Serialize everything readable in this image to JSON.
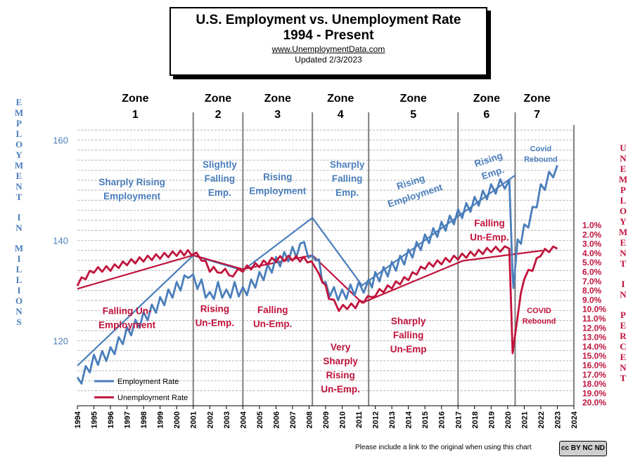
{
  "title": {
    "line1": "U.S. Employment vs. Unemployment Rate",
    "line2": "1994 - Present",
    "url": "www.UnemploymentData.com",
    "updated": "Updated  2/3/2023"
  },
  "left_axis_label": "EMPLOYMENT IN MILLIONS",
  "right_axis_label": "UNEMPLOYMENT IN PERCENT",
  "footer": "Please include a link to the original when using this chart",
  "cc_badge": "cc BY NC ND",
  "colors": {
    "employment": "#4a7ebb",
    "unemployment": "#c0143c",
    "zone_line": "#7f7f7f",
    "grid": "#999999"
  },
  "zones": [
    {
      "name": "Zone",
      "num": "1",
      "start": 1994,
      "end": 2001
    },
    {
      "name": "Zone",
      "num": "2",
      "start": 2001,
      "end": 2004
    },
    {
      "name": "Zone",
      "num": "3",
      "start": 2004,
      "end": 2008.2
    },
    {
      "name": "Zone",
      "num": "4",
      "start": 2008.2,
      "end": 2011.6
    },
    {
      "name": "Zone",
      "num": "5",
      "start": 2011.6,
      "end": 2017
    },
    {
      "name": "Zone",
      "num": "6",
      "start": 2017,
      "end": 2020.45
    },
    {
      "name": "Zone",
      "num": "7",
      "start": 2020.45,
      "end": 2023.1
    }
  ],
  "annotations": [
    {
      "lines": [
        "Sharply Rising",
        "Employment"
      ],
      "color": "employment",
      "x": 1997.3,
      "y": 151
    },
    {
      "lines": [
        "Slightly",
        "Falling",
        "Emp."
      ],
      "color": "employment",
      "x": 2002.6,
      "y": 154.5
    },
    {
      "lines": [
        "Rising",
        "Employment"
      ],
      "color": "employment",
      "x": 2006.1,
      "y": 152
    },
    {
      "lines": [
        "Sharply",
        "Falling",
        "Emp."
      ],
      "color": "employment",
      "x": 2010.3,
      "y": 154.5
    },
    {
      "lines": [
        "Rising",
        "Employment"
      ],
      "color": "employment",
      "x": 2014.2,
      "y": 151,
      "rotate": -18
    },
    {
      "lines": [
        "Rising",
        "Emp."
      ],
      "color": "employment",
      "x": 2018.9,
      "y": 155.5,
      "rotate": -18
    },
    {
      "lines": [
        "Covid",
        "Rebound"
      ],
      "color": "employment",
      "x": 2022.0,
      "y": 157.8,
      "small": true
    },
    {
      "lines": [
        "Falling Un-",
        "Employment"
      ],
      "color": "unemployment",
      "x": 1997.0,
      "y": 10.5
    },
    {
      "lines": [
        "Rising",
        "Un-Emp."
      ],
      "color": "unemployment",
      "x": 2002.3,
      "y": 10.3
    },
    {
      "lines": [
        "Falling",
        "Un-Emp."
      ],
      "color": "unemployment",
      "x": 2005.8,
      "y": 10.4
    },
    {
      "lines": [
        "Very",
        "Sharply",
        "Rising",
        "Un-Emp."
      ],
      "color": "unemployment",
      "x": 2009.9,
      "y": 14.4
    },
    {
      "lines": [
        "Sharply",
        "Falling",
        "Un-Emp"
      ],
      "color": "unemployment",
      "x": 2014.0,
      "y": 11.6
    },
    {
      "lines": [
        "Falling",
        "Un-Emp."
      ],
      "color": "unemployment",
      "x": 2018.9,
      "y": 1.1
    },
    {
      "lines": [
        "COVID",
        "Rebound"
      ],
      "color": "unemployment",
      "x": 2021.9,
      "y": 10.4,
      "small": true
    }
  ],
  "chart_data": {
    "type": "line",
    "title": "U.S. Employment vs. Unemployment Rate 1994 - Present",
    "x_ticks": [
      1994,
      1995,
      1996,
      1997,
      1998,
      1999,
      2000,
      2001,
      2002,
      2003,
      2004,
      2005,
      2006,
      2007,
      2008,
      2009,
      2010,
      2011,
      2012,
      2013,
      2014,
      2015,
      2016,
      2017,
      2018,
      2019,
      2020,
      2021,
      2022,
      2023,
      2024
    ],
    "xlim": [
      1994,
      2024
    ],
    "y_left": {
      "label": "EMPLOYMENT IN MILLIONS",
      "ticks": [
        120,
        140,
        160
      ],
      "lim": [
        108,
        164
      ]
    },
    "y_right": {
      "label": "UNEMPLOYMENT IN PERCENT",
      "ticks": [
        "1.0%",
        "2.0%",
        "3.0%",
        "4.0%",
        "5.0%",
        "6.0%",
        "7.0%",
        "8.0%",
        "9.0%",
        "10.0%",
        "11.0%",
        "12.0%",
        "13.0%",
        "14.0%",
        "15.0%",
        "16.0%",
        "17.0%",
        "18.0%",
        "19.0%",
        "20.0%"
      ],
      "lim": [
        1,
        20
      ],
      "inverted": true
    },
    "legend": {
      "position": "bottom-left",
      "entries": [
        "Employment Rate",
        "Unemployment Rate"
      ]
    },
    "series": [
      {
        "name": "Employment Rate",
        "axis": "left",
        "points": [
          [
            1994,
            111.5
          ],
          [
            1995,
            116
          ],
          [
            1996,
            117.5
          ],
          [
            1997,
            121.5
          ],
          [
            1998,
            124.5
          ],
          [
            1999,
            127.5
          ],
          [
            2000,
            130.5
          ],
          [
            2000.7,
            132.5
          ],
          [
            2001,
            132
          ],
          [
            2001.5,
            131
          ],
          [
            2002,
            128.5
          ],
          [
            2002.5,
            130.5
          ],
          [
            2003,
            129
          ],
          [
            2003.5,
            130.5
          ],
          [
            2004,
            129.5
          ],
          [
            2005,
            132.5
          ],
          [
            2006,
            135.5
          ],
          [
            2007,
            137.5
          ],
          [
            2007.7,
            138.5
          ],
          [
            2008.2,
            137
          ],
          [
            2008.6,
            135
          ],
          [
            2009,
            130.5
          ],
          [
            2009.5,
            129.5
          ],
          [
            2010,
            129
          ],
          [
            2010.5,
            130
          ],
          [
            2011,
            130.5
          ],
          [
            2011.6,
            131
          ],
          [
            2012,
            132.5
          ],
          [
            2013,
            134.5
          ],
          [
            2014,
            137
          ],
          [
            2015,
            140
          ],
          [
            2016,
            142.5
          ],
          [
            2017,
            145
          ],
          [
            2018,
            147.5
          ],
          [
            2019,
            150
          ],
          [
            2020.1,
            152
          ],
          [
            2020.3,
            133
          ],
          [
            2020.35,
            130.5
          ],
          [
            2020.6,
            139
          ],
          [
            2021,
            142
          ],
          [
            2021.5,
            145.5
          ],
          [
            2022,
            150
          ],
          [
            2022.5,
            152.5
          ],
          [
            2023,
            155
          ]
        ],
        "trend": [
          [
            1994,
            115
          ],
          [
            2001,
            137
          ],
          [
            2004,
            134
          ],
          [
            2008.2,
            144.5
          ],
          [
            2011.2,
            131
          ],
          [
            2020.45,
            153
          ]
        ]
      },
      {
        "name": "Unemployment Rate",
        "axis": "right",
        "points": [
          [
            1994,
            7.2
          ],
          [
            1995,
            5.8
          ],
          [
            1996,
            5.6
          ],
          [
            1997,
            5.0
          ],
          [
            1998,
            4.6
          ],
          [
            1999,
            4.3
          ],
          [
            2000,
            4.0
          ],
          [
            2000.9,
            3.9
          ],
          [
            2001.5,
            4.5
          ],
          [
            2002,
            5.7
          ],
          [
            2002.7,
            5.8
          ],
          [
            2003.4,
            6.2
          ],
          [
            2004,
            5.7
          ],
          [
            2005,
            5.2
          ],
          [
            2006,
            4.6
          ],
          [
            2007,
            4.5
          ],
          [
            2007.9,
            4.7
          ],
          [
            2008.4,
            5.6
          ],
          [
            2008.8,
            6.8
          ],
          [
            2009.2,
            8.6
          ],
          [
            2009.8,
            9.9
          ],
          [
            2010.3,
            9.7
          ],
          [
            2010.8,
            9.6
          ],
          [
            2011.3,
            9.0
          ],
          [
            2011.8,
            8.7
          ],
          [
            2012,
            8.3
          ],
          [
            2013,
            7.5
          ],
          [
            2014,
            6.6
          ],
          [
            2015,
            5.4
          ],
          [
            2016,
            4.9
          ],
          [
            2017,
            4.4
          ],
          [
            2018,
            4.0
          ],
          [
            2019,
            3.6
          ],
          [
            2020.1,
            3.5
          ],
          [
            2020.3,
            14.7
          ],
          [
            2020.6,
            10.5
          ],
          [
            2021,
            6.5
          ],
          [
            2021.5,
            5.6
          ],
          [
            2022,
            4.0
          ],
          [
            2022.5,
            3.6
          ],
          [
            2023,
            3.5
          ]
        ],
        "trend": [
          [
            1994,
            7.8
          ],
          [
            2001,
            4.2
          ],
          [
            2004,
            5.7
          ],
          [
            2008.2,
            4.2
          ],
          [
            2011.2,
            9.3
          ],
          [
            2017.3,
            4.8
          ],
          [
            2022.1,
            3.7
          ]
        ]
      }
    ]
  }
}
